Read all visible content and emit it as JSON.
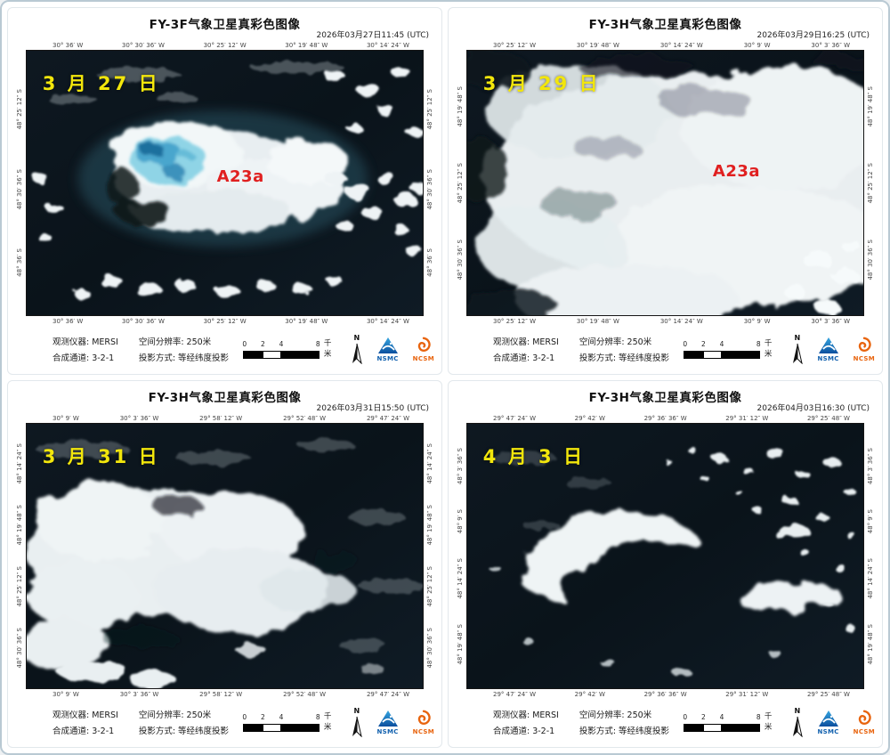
{
  "colors": {
    "date_label": "#f2e60c",
    "a23a": "#e02020",
    "nsmc_blue": "#1160ae",
    "ncsm_orange": "#e8640e",
    "sea_dark": "#0b141b"
  },
  "footer": {
    "instrument_label": "观测仪器:",
    "instrument_value": "MERSI",
    "resolution_label": "空间分辨率:",
    "resolution_value": "250米",
    "channels_label": "合成通道:",
    "channels_value": "3-2-1",
    "projection_label": "投影方式:",
    "projection_value": "等经纬度投影",
    "scale_ticks": [
      "0",
      "2",
      "4",
      "8"
    ],
    "scale_unit": "千米",
    "north_label": "N",
    "nsmc_text": "NSMC",
    "ncsm_text": "NCSM"
  },
  "panels": [
    {
      "title": "FY-3F气象卫星真彩色图像",
      "timestamp": "2026年03月27日11:45 (UTC)",
      "date_label": "3 月 27 日",
      "a23a_label": "A23a",
      "lon_labels": [
        "30° 36′ W",
        "30° 30′ 36″ W",
        "30° 25′ 12″ W",
        "30° 19′ 48″ W",
        "30° 14′ 24″ W"
      ],
      "lat_labels": [
        "48° 25′ 12″ S",
        "48° 30′ 36″ S",
        "48° 36′ S"
      ]
    },
    {
      "title": "FY-3H气象卫星真彩色图像",
      "timestamp": "2026年03月29日16:25 (UTC)",
      "date_label": "3 月 29 日",
      "a23a_label": "A23a",
      "lon_labels": [
        "30° 25′ 12″ W",
        "30° 19′ 48″ W",
        "30° 14′ 24″ W",
        "30° 9′ W",
        "30° 3′ 36″ W"
      ],
      "lat_labels": [
        "48° 19′ 48″ S",
        "48° 25′ 12″ S",
        "48° 30′ 36″ S"
      ]
    },
    {
      "title": "FY-3H气象卫星真彩色图像",
      "timestamp": "2026年03月31日15:50 (UTC)",
      "date_label": "3 月 31 日",
      "lon_labels": [
        "30° 9′ W",
        "30° 3′ 36″ W",
        "29° 58′ 12″ W",
        "29° 52′ 48″ W",
        "29° 47′ 24″ W"
      ],
      "lat_labels": [
        "48° 14′ 24″ S",
        "48° 19′ 48″ S",
        "48° 25′ 12″ S",
        "48° 30′ 36″ S"
      ]
    },
    {
      "title": "FY-3H气象卫星真彩色图像",
      "timestamp": "2026年04月03日16:30 (UTC)",
      "date_label": "4 月 3 日",
      "lon_labels": [
        "29° 47′ 24″ W",
        "29° 42′ W",
        "29° 36′ 36″ W",
        "29° 31′ 12″ W",
        "29° 25′ 48″ W"
      ],
      "lat_labels": [
        "48° 3′ 36″ S",
        "48° 9′ S",
        "48° 14′ 24″ S",
        "48° 19′ 48″ S"
      ]
    }
  ]
}
